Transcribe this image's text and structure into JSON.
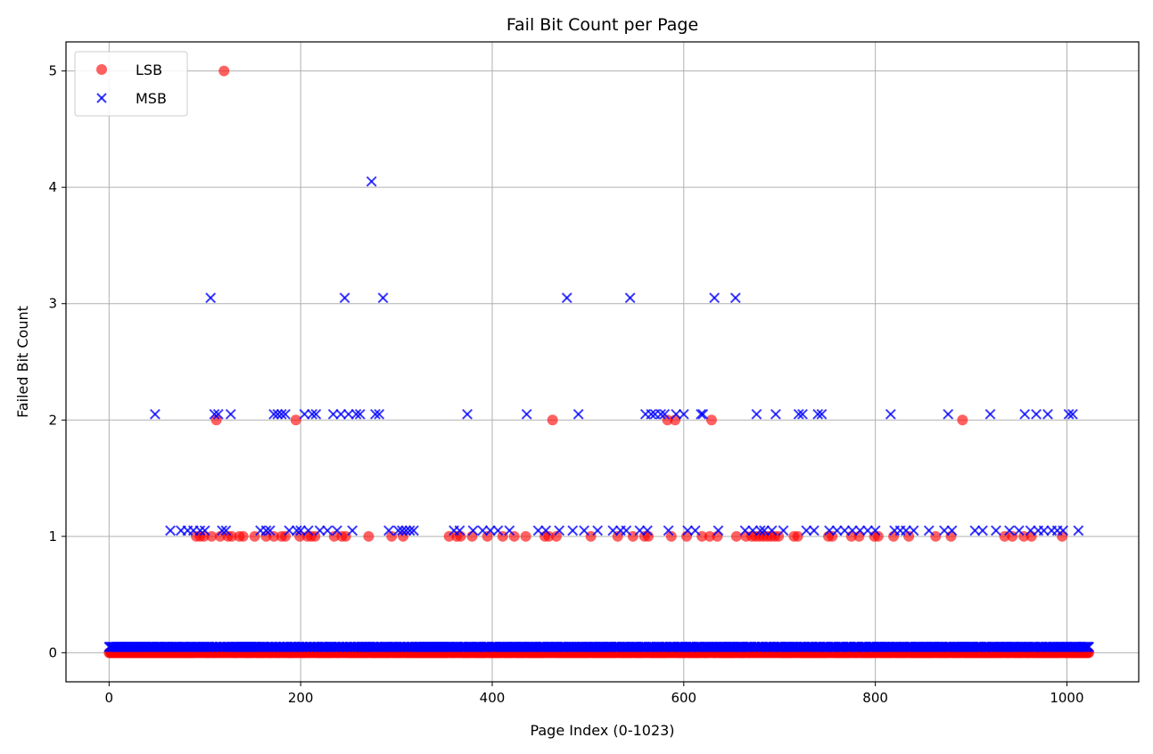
{
  "chart_data": {
    "type": "scatter",
    "title": "Fail Bit Count per Page",
    "xlabel": "Page Index (0-1023)",
    "ylabel": "Failed Bit Count",
    "xlim": [
      -45,
      1075
    ],
    "ylim": [
      -0.25,
      5.25
    ],
    "xticks": [
      0,
      200,
      400,
      600,
      800,
      1000
    ],
    "yticks": [
      0,
      1,
      2,
      3,
      4,
      5
    ],
    "grid": true,
    "legend_position": "upper left",
    "n_pages": 1024,
    "series": [
      {
        "name": "LSB",
        "marker": "circle",
        "color": "#ff0000",
        "default_value": 0,
        "nonzero_points": [
          [
            91,
            1
          ],
          [
            95,
            1
          ],
          [
            99,
            1
          ],
          [
            107,
            1
          ],
          [
            112,
            2
          ],
          [
            116,
            1
          ],
          [
            120,
            5
          ],
          [
            124,
            1
          ],
          [
            128,
            1
          ],
          [
            136,
            1
          ],
          [
            140,
            1
          ],
          [
            152,
            1
          ],
          [
            164,
            1
          ],
          [
            172,
            1
          ],
          [
            180,
            1
          ],
          [
            184,
            1
          ],
          [
            195,
            2
          ],
          [
            199,
            1
          ],
          [
            207,
            1
          ],
          [
            211,
            1
          ],
          [
            215,
            1
          ],
          [
            235,
            1
          ],
          [
            243,
            1
          ],
          [
            247,
            1
          ],
          [
            271,
            1
          ],
          [
            295,
            1
          ],
          [
            307,
            1
          ],
          [
            355,
            1
          ],
          [
            363,
            1
          ],
          [
            367,
            1
          ],
          [
            379,
            1
          ],
          [
            395,
            1
          ],
          [
            411,
            1
          ],
          [
            423,
            1
          ],
          [
            435,
            1
          ],
          [
            455,
            1
          ],
          [
            459,
            1
          ],
          [
            463,
            2
          ],
          [
            467,
            1
          ],
          [
            503,
            1
          ],
          [
            531,
            1
          ],
          [
            547,
            1
          ],
          [
            559,
            1
          ],
          [
            563,
            1
          ],
          [
            583,
            2
          ],
          [
            587,
            1
          ],
          [
            591,
            2
          ],
          [
            603,
            1
          ],
          [
            619,
            1
          ],
          [
            627,
            1
          ],
          [
            629,
            2
          ],
          [
            635,
            1
          ],
          [
            655,
            1
          ],
          [
            665,
            1
          ],
          [
            671,
            1
          ],
          [
            675,
            1
          ],
          [
            679,
            1
          ],
          [
            683,
            1
          ],
          [
            687,
            1
          ],
          [
            691,
            1
          ],
          [
            695,
            1
          ],
          [
            699,
            1
          ],
          [
            715,
            1
          ],
          [
            719,
            1
          ],
          [
            751,
            1
          ],
          [
            755,
            1
          ],
          [
            775,
            1
          ],
          [
            783,
            1
          ],
          [
            799,
            1
          ],
          [
            803,
            1
          ],
          [
            819,
            1
          ],
          [
            835,
            1
          ],
          [
            863,
            1
          ],
          [
            879,
            1
          ],
          [
            891,
            2
          ],
          [
            935,
            1
          ],
          [
            943,
            1
          ],
          [
            955,
            1
          ],
          [
            963,
            1
          ],
          [
            995,
            1
          ]
        ]
      },
      {
        "name": "MSB",
        "marker": "x",
        "color": "#0000ff",
        "default_value": 0,
        "nonzero_points": [
          [
            48,
            2
          ],
          [
            64,
            1
          ],
          [
            75,
            1
          ],
          [
            82,
            1
          ],
          [
            88,
            1
          ],
          [
            95,
            1
          ],
          [
            100,
            1
          ],
          [
            106,
            3
          ],
          [
            110,
            2
          ],
          [
            114,
            2
          ],
          [
            118,
            1
          ],
          [
            122,
            1
          ],
          [
            127,
            2
          ],
          [
            158,
            1
          ],
          [
            164,
            1
          ],
          [
            168,
            1
          ],
          [
            172,
            2
          ],
          [
            176,
            2
          ],
          [
            180,
            2
          ],
          [
            184,
            2
          ],
          [
            188,
            1
          ],
          [
            196,
            1
          ],
          [
            200,
            1
          ],
          [
            204,
            2
          ],
          [
            208,
            1
          ],
          [
            212,
            2
          ],
          [
            216,
            2
          ],
          [
            220,
            1
          ],
          [
            228,
            1
          ],
          [
            234,
            2
          ],
          [
            238,
            1
          ],
          [
            242,
            2
          ],
          [
            246,
            3
          ],
          [
            250,
            2
          ],
          [
            254,
            1
          ],
          [
            258,
            2
          ],
          [
            262,
            2
          ],
          [
            274,
            4
          ],
          [
            278,
            2
          ],
          [
            282,
            2
          ],
          [
            286,
            3
          ],
          [
            292,
            1
          ],
          [
            302,
            1
          ],
          [
            306,
            1
          ],
          [
            310,
            1
          ],
          [
            314,
            1
          ],
          [
            318,
            1
          ],
          [
            360,
            1
          ],
          [
            366,
            1
          ],
          [
            374,
            2
          ],
          [
            380,
            1
          ],
          [
            390,
            1
          ],
          [
            398,
            1
          ],
          [
            406,
            1
          ],
          [
            418,
            1
          ],
          [
            436,
            2
          ],
          [
            448,
            1
          ],
          [
            456,
            1
          ],
          [
            470,
            1
          ],
          [
            478,
            3
          ],
          [
            484,
            1
          ],
          [
            490,
            2
          ],
          [
            496,
            1
          ],
          [
            510,
            1
          ],
          [
            526,
            1
          ],
          [
            534,
            1
          ],
          [
            540,
            1
          ],
          [
            544,
            3
          ],
          [
            554,
            1
          ],
          [
            560,
            2
          ],
          [
            562,
            1
          ],
          [
            566,
            2
          ],
          [
            570,
            2
          ],
          [
            576,
            2
          ],
          [
            580,
            2
          ],
          [
            584,
            1
          ],
          [
            592,
            2
          ],
          [
            600,
            2
          ],
          [
            604,
            1
          ],
          [
            612,
            1
          ],
          [
            618,
            2
          ],
          [
            620,
            2
          ],
          [
            632,
            3
          ],
          [
            636,
            1
          ],
          [
            654,
            3
          ],
          [
            664,
            1
          ],
          [
            672,
            1
          ],
          [
            676,
            2
          ],
          [
            680,
            1
          ],
          [
            684,
            1
          ],
          [
            692,
            1
          ],
          [
            696,
            2
          ],
          [
            704,
            1
          ],
          [
            720,
            2
          ],
          [
            724,
            2
          ],
          [
            728,
            1
          ],
          [
            736,
            1
          ],
          [
            740,
            2
          ],
          [
            744,
            2
          ],
          [
            752,
            1
          ],
          [
            760,
            1
          ],
          [
            768,
            1
          ],
          [
            776,
            1
          ],
          [
            784,
            1
          ],
          [
            792,
            1
          ],
          [
            800,
            1
          ],
          [
            816,
            2
          ],
          [
            820,
            1
          ],
          [
            826,
            1
          ],
          [
            832,
            1
          ],
          [
            840,
            1
          ],
          [
            856,
            1
          ],
          [
            872,
            1
          ],
          [
            876,
            2
          ],
          [
            880,
            1
          ],
          [
            904,
            1
          ],
          [
            912,
            1
          ],
          [
            920,
            2
          ],
          [
            926,
            1
          ],
          [
            940,
            1
          ],
          [
            950,
            1
          ],
          [
            956,
            2
          ],
          [
            962,
            1
          ],
          [
            968,
            2
          ],
          [
            970,
            1
          ],
          [
            976,
            1
          ],
          [
            980,
            2
          ],
          [
            984,
            1
          ],
          [
            990,
            1
          ],
          [
            996,
            1
          ],
          [
            1002,
            2
          ],
          [
            1006,
            2
          ],
          [
            1012,
            1
          ]
        ]
      }
    ]
  }
}
